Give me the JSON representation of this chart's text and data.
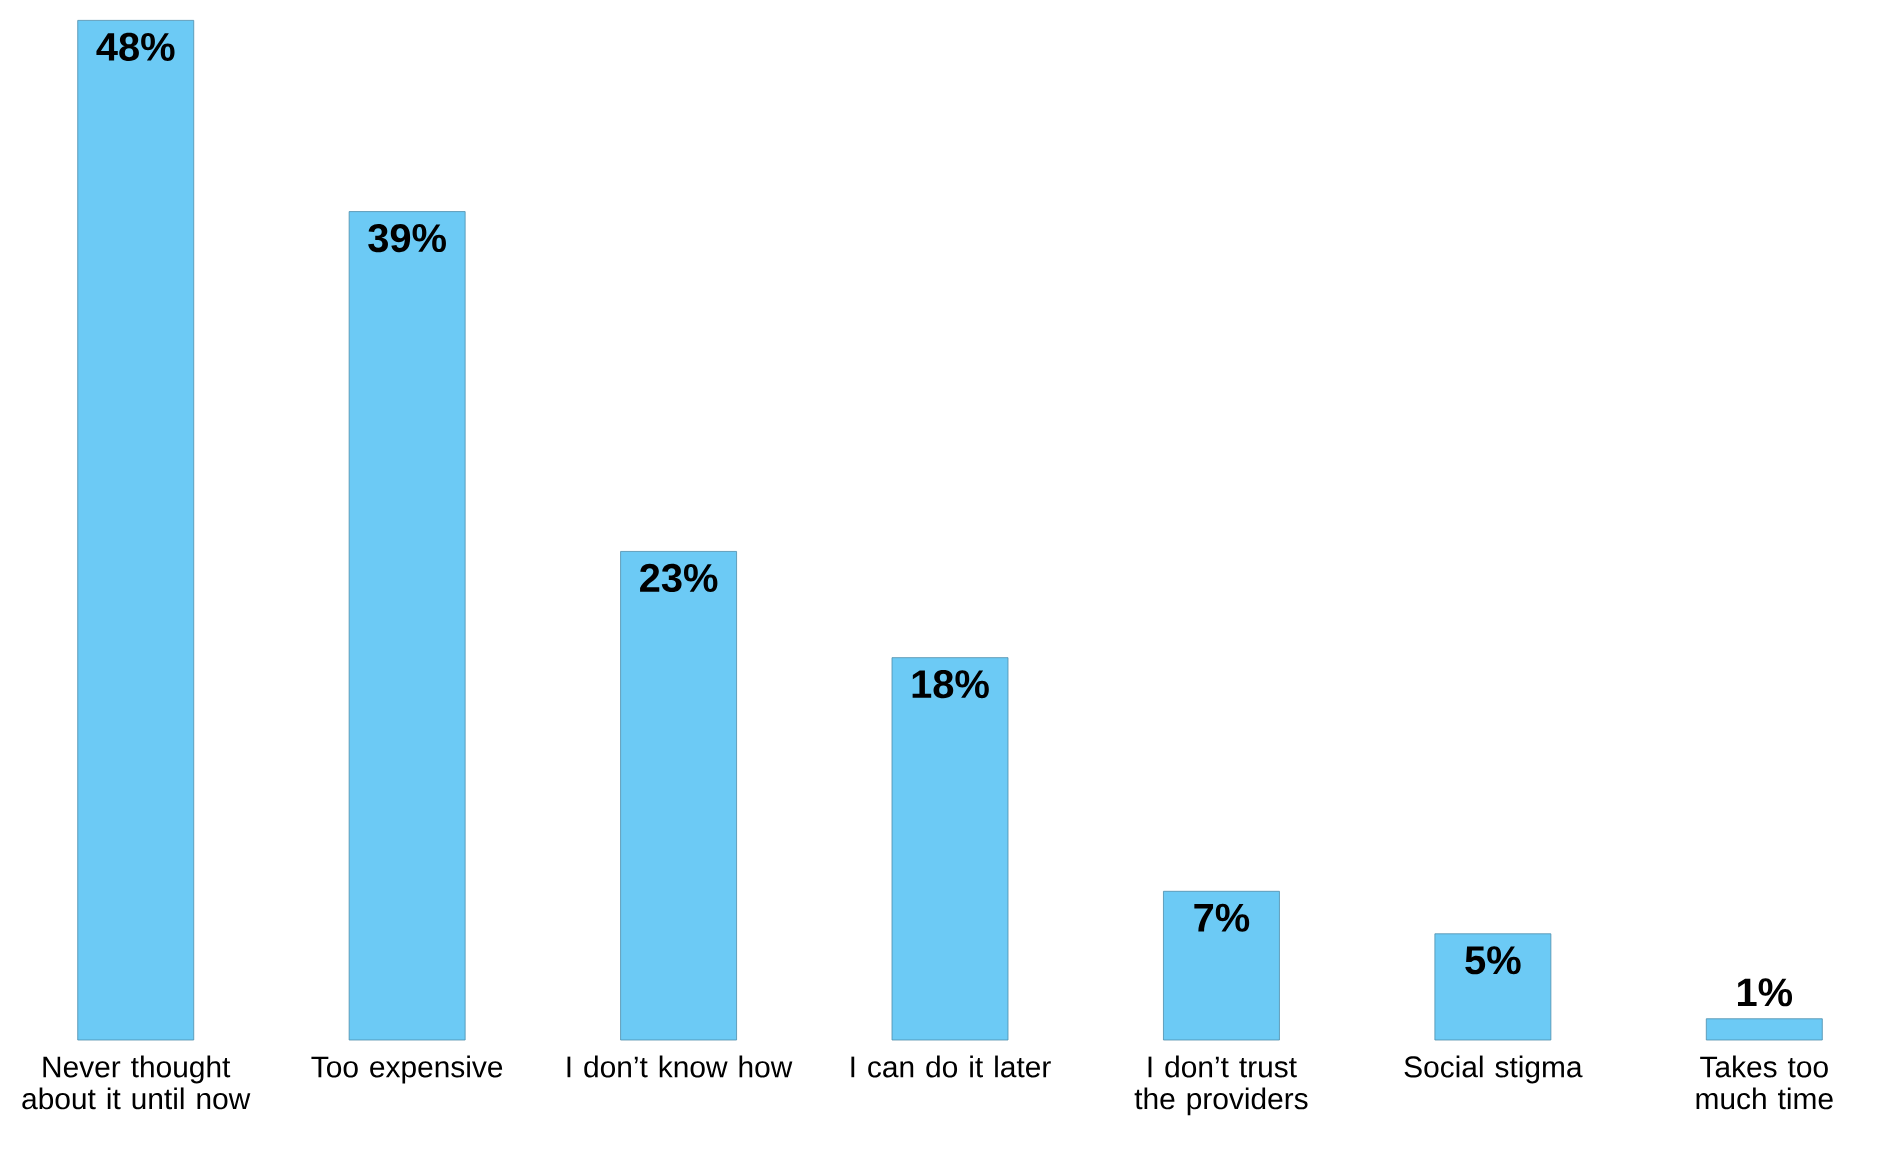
{
  "chart_data": {
    "type": "bar",
    "categories": [
      "Never thought about it until now",
      "Too expensive",
      "I don’t know how",
      "I can do it later",
      "I don’t trust the providers",
      "Social stigma",
      "Takes too much time"
    ],
    "values": [
      48,
      39,
      23,
      18,
      7,
      5,
      1
    ],
    "value_labels": [
      "48%",
      "39%",
      "23%",
      "18%",
      "7%",
      "5%",
      "1%"
    ],
    "color": "#6ccaf5"
  }
}
